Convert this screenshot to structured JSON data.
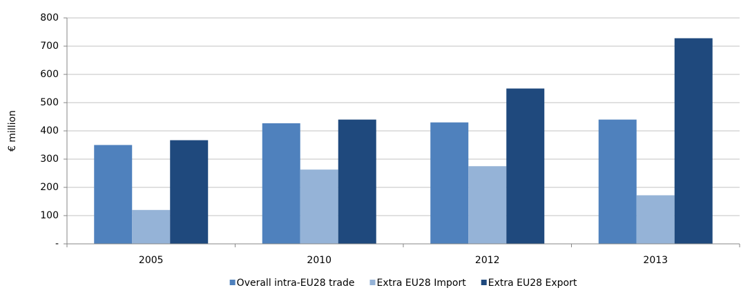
{
  "chart_data": {
    "type": "bar",
    "y_label": "€ million",
    "categories": [
      "2005",
      "2010",
      "2012",
      "2013"
    ],
    "series": [
      {
        "name": "Overall intra-EU28 trade",
        "color": "#4f81bd",
        "values": [
          350,
          427,
          430,
          440
        ]
      },
      {
        "name": "Extra EU28 Import",
        "color": "#95b3d7",
        "values": [
          120,
          263,
          275,
          172
        ]
      },
      {
        "name": "Extra EU28 Export",
        "color": "#1f497d",
        "values": [
          367,
          440,
          550,
          728
        ]
      }
    ],
    "ylim": [
      0,
      800
    ],
    "yticks": [
      {
        "value": 0,
        "label": "-"
      },
      100,
      200,
      300,
      400,
      500,
      600,
      700,
      800
    ],
    "grid": true,
    "legend": "bottom"
  }
}
